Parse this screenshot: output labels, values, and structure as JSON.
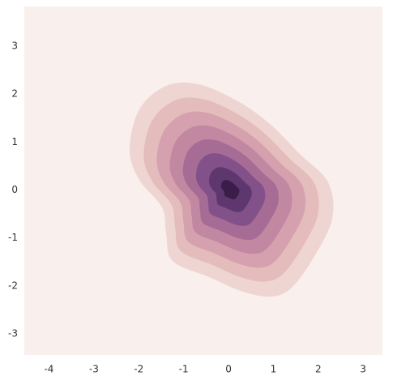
{
  "chart_data": {
    "type": "kde",
    "xlim": [
      -4.55,
      3.43
    ],
    "ylim": [
      -3.44,
      3.83
    ],
    "xticks": [
      -4,
      -3,
      -2,
      -1,
      0,
      1,
      2,
      3
    ],
    "yticks": [
      -3,
      -2,
      -1,
      0,
      1,
      2,
      3
    ],
    "background": "#f9efec",
    "level_colors": [
      "#efd5d1",
      "#e4bcbc",
      "#d5a1ae",
      "#c287a1",
      "#a66c96",
      "#835189",
      "#5e376f",
      "#3a1d48"
    ],
    "grid": false
  }
}
